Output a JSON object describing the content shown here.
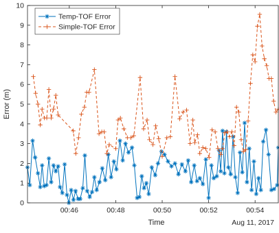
{
  "chart_data": {
    "type": "line",
    "title": "",
    "xlabel": "Time",
    "ylabel": "Error (m)",
    "date_note": "Aug 11, 2017",
    "xlim": [
      44.2,
      55.0
    ],
    "ylim": [
      0,
      10
    ],
    "x_ticks": [
      46,
      48,
      50,
      52,
      54
    ],
    "x_tick_labels": [
      "00:46",
      "00:48",
      "00:50",
      "00:52",
      "00:54"
    ],
    "y_ticks": [
      0,
      1,
      2,
      3,
      4,
      5,
      6,
      7,
      8,
      9,
      10
    ],
    "grid": false,
    "legend_position": "top-left",
    "series": [
      {
        "name": "Temp-TOF Error",
        "color": "#0072bd",
        "line_style": "solid",
        "marker": "asterisk",
        "points": [
          [
            44.2,
            1.8
          ],
          [
            44.3,
            0.9
          ],
          [
            44.42,
            3.15
          ],
          [
            44.53,
            2.3
          ],
          [
            44.65,
            1.5
          ],
          [
            44.75,
            0.8
          ],
          [
            44.83,
            1.9
          ],
          [
            44.92,
            0.85
          ],
          [
            45.02,
            0.9
          ],
          [
            45.12,
            2.25
          ],
          [
            45.22,
            1.05
          ],
          [
            45.32,
            1.9
          ],
          [
            45.42,
            1.6
          ],
          [
            45.52,
            1.85
          ],
          [
            45.6,
            0.8
          ],
          [
            45.7,
            0.5
          ],
          [
            45.8,
            1.95
          ],
          [
            45.9,
            0.4
          ],
          [
            45.98,
            0.0
          ],
          [
            46.08,
            0.65
          ],
          [
            46.18,
            0.15
          ],
          [
            46.27,
            0.6
          ],
          [
            46.38,
            0.2
          ],
          [
            46.47,
            0.2
          ],
          [
            46.58,
            0.75
          ],
          [
            46.67,
            2.4
          ],
          [
            46.77,
            0.6
          ],
          [
            46.88,
            0.3
          ],
          [
            46.98,
            0.55
          ],
          [
            47.08,
            1.3
          ],
          [
            47.18,
            0.65
          ],
          [
            47.3,
            1.05
          ],
          [
            47.42,
            1.75
          ],
          [
            47.55,
            1.15
          ],
          [
            47.68,
            2.45
          ],
          [
            47.8,
            1.3
          ],
          [
            47.92,
            2.1
          ],
          [
            48.03,
            1.7
          ],
          [
            48.18,
            3.15
          ],
          [
            48.3,
            2.15
          ],
          [
            48.42,
            3.0
          ],
          [
            48.55,
            2.55
          ],
          [
            48.7,
            2.8
          ],
          [
            48.8,
            1.9
          ],
          [
            48.92,
            0.25
          ],
          [
            49.02,
            0.3
          ],
          [
            49.12,
            1.35
          ],
          [
            49.22,
            0.75
          ],
          [
            49.32,
            1.0
          ],
          [
            49.42,
            0.45
          ],
          [
            49.55,
            1.8
          ],
          [
            49.7,
            1.4
          ],
          [
            49.82,
            2.0
          ],
          [
            49.97,
            2.6
          ],
          [
            50.1,
            2.45
          ],
          [
            50.25,
            2.1
          ],
          [
            50.4,
            1.85
          ],
          [
            50.55,
            2.0
          ],
          [
            50.7,
            1.45
          ],
          [
            50.85,
            1.95
          ],
          [
            51.0,
            1.6
          ],
          [
            51.12,
            2.15
          ],
          [
            51.25,
            1.05
          ],
          [
            51.38,
            1.9
          ],
          [
            51.5,
            1.1
          ],
          [
            51.62,
            1.25
          ],
          [
            51.75,
            0.95
          ],
          [
            51.88,
            2.2
          ],
          [
            52.0,
            0.25
          ],
          [
            52.12,
            1.9
          ],
          [
            52.22,
            1.25
          ],
          [
            52.35,
            1.35
          ],
          [
            52.45,
            2.65
          ],
          [
            52.52,
            1.6
          ],
          [
            52.6,
            3.65
          ],
          [
            52.68,
            1.5
          ],
          [
            52.77,
            3.6
          ],
          [
            52.85,
            1.8
          ],
          [
            52.95,
            1.45
          ],
          [
            53.05,
            3.35
          ],
          [
            53.15,
            1.3
          ],
          [
            53.25,
            0.5
          ],
          [
            53.35,
            2.55
          ],
          [
            53.45,
            1.55
          ],
          [
            53.55,
            4.05
          ],
          [
            53.65,
            1.05
          ],
          [
            53.75,
            2.75
          ],
          [
            53.85,
            0.65
          ],
          [
            53.95,
            2.1
          ],
          [
            54.05,
            0.45
          ],
          [
            54.15,
            1.25
          ],
          [
            54.25,
            0.65
          ],
          [
            54.35,
            3.1
          ],
          [
            54.47,
            3.7
          ],
          [
            54.58,
            2.45
          ],
          [
            54.7,
            0.65
          ],
          [
            54.82,
            0.7
          ],
          [
            54.95,
            0.9
          ],
          [
            55.0,
            2.8
          ]
        ]
      },
      {
        "name": "Simple-TOF Error",
        "color": "#d95319",
        "line_style": "dashed",
        "marker": "plus",
        "points": [
          [
            44.45,
            6.4
          ],
          [
            44.55,
            5.55
          ],
          [
            44.65,
            5.0
          ],
          [
            44.75,
            3.95
          ],
          [
            44.83,
            4.75
          ],
          [
            44.93,
            4.3
          ],
          [
            45.03,
            4.3
          ],
          [
            45.12,
            5.75
          ],
          [
            45.22,
            4.3
          ],
          [
            45.32,
            4.75
          ],
          [
            45.42,
            5.45
          ],
          [
            45.52,
            4.45
          ],
          [
            46.17,
            3.65
          ],
          [
            46.28,
            2.5
          ],
          [
            46.4,
            3.3
          ],
          [
            46.52,
            4.5
          ],
          [
            46.65,
            4.85
          ],
          [
            46.75,
            5.6
          ],
          [
            46.85,
            5.6
          ],
          [
            47.08,
            6.75
          ],
          [
            47.28,
            3.5
          ],
          [
            47.4,
            3.6
          ],
          [
            47.5,
            3.6
          ],
          [
            47.62,
            2.5
          ],
          [
            47.72,
            2.95
          ],
          [
            48.0,
            2.75
          ],
          [
            48.1,
            4.2
          ],
          [
            48.2,
            4.3
          ],
          [
            48.35,
            3.75
          ],
          [
            48.5,
            3.3
          ],
          [
            48.65,
            3.3
          ],
          [
            48.78,
            3.4
          ],
          [
            49.05,
            6.35
          ],
          [
            49.2,
            3.75
          ],
          [
            49.35,
            4.2
          ],
          [
            49.45,
            3.2
          ],
          [
            49.6,
            2.95
          ],
          [
            49.72,
            3.9
          ],
          [
            49.85,
            3.25
          ],
          [
            50.0,
            2.35
          ],
          [
            50.2,
            3.3
          ],
          [
            50.35,
            3.35
          ],
          [
            50.55,
            6.4
          ],
          [
            50.75,
            4.25
          ],
          [
            50.9,
            4.6
          ],
          [
            51.05,
            4.7
          ],
          [
            51.2,
            3.0
          ],
          [
            51.32,
            4.2
          ],
          [
            51.4,
            3.05
          ],
          [
            51.52,
            3.45
          ],
          [
            51.62,
            2.5
          ],
          [
            51.75,
            2.8
          ],
          [
            51.88,
            2.75
          ],
          [
            52.02,
            2.3
          ],
          [
            52.15,
            3.7
          ],
          [
            52.28,
            3.6
          ],
          [
            52.4,
            2.75
          ],
          [
            52.52,
            2.45
          ],
          [
            52.6,
            2.75
          ],
          [
            52.7,
            3.55
          ],
          [
            52.8,
            3.6
          ],
          [
            52.9,
            3.35
          ],
          [
            53.0,
            3.6
          ],
          [
            53.1,
            2.9
          ],
          [
            53.2,
            4.85
          ],
          [
            53.3,
            4.6
          ],
          [
            53.4,
            3.2
          ],
          [
            53.5,
            2.6
          ],
          [
            53.6,
            2.7
          ],
          [
            53.7,
            4.15
          ],
          [
            53.8,
            6.05
          ],
          [
            53.9,
            7.5
          ],
          [
            54.0,
            7.15
          ],
          [
            54.1,
            8.95
          ],
          [
            54.2,
            9.55
          ],
          [
            54.3,
            7.95
          ],
          [
            54.4,
            7.3
          ],
          [
            54.5,
            6.95
          ],
          [
            54.6,
            6.3
          ],
          [
            54.7,
            6.3
          ],
          [
            54.8,
            5.15
          ],
          [
            54.9,
            4.6
          ],
          [
            55.0,
            4.75
          ]
        ]
      }
    ]
  }
}
